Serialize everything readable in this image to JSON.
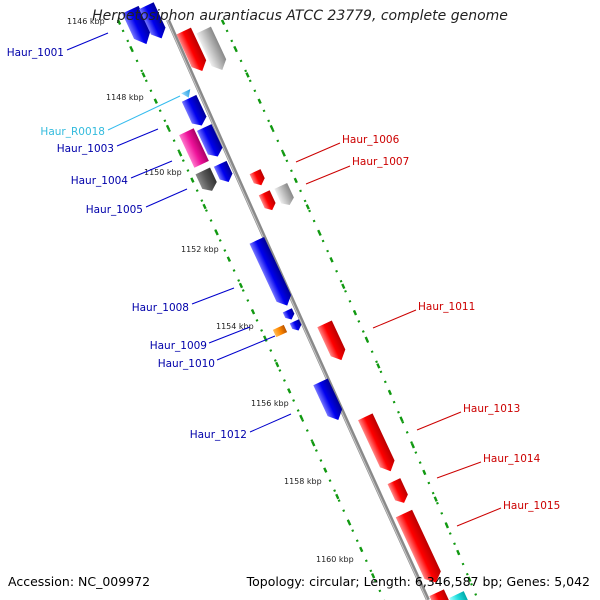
{
  "header": {
    "title": "Herpetosiphon aurantiacus ATCC 23779, complete genome"
  },
  "footer": {
    "accession": "Accession: NC_009972",
    "topology": "Topology: circular; Length: 6,346,587 bp; Genes: 5,042"
  },
  "colors": {
    "forward_gene": "#ee0000",
    "reverse_gene": "#0000dd",
    "pseudo_gene": "#bbbbbb",
    "pseudo_gene_dark": "#555555",
    "rrna": "#ee1199",
    "trna": "#ff8800",
    "ncrna": "#33bbee",
    "misc": "#22dddd",
    "backbone": "#888888",
    "tick_marks": "#119911",
    "forward_label": "#cc0000",
    "reverse_label": "#0000aa",
    "ncrna_label": "#33bbdd"
  },
  "position_markers": [
    "1146 kbp",
    "1148 kbp",
    "1150 kbp",
    "1152 kbp",
    "1154 kbp",
    "1156 kbp",
    "1158 kbp",
    "1160 kbp"
  ],
  "gene_labels": {
    "reverse": [
      "Haur_1001",
      "Haur_1003",
      "Haur_1004",
      "Haur_1005",
      "Haur_1008",
      "Haur_1009",
      "Haur_1010",
      "Haur_1012"
    ],
    "ncrna": [
      "Haur_R0018"
    ],
    "forward": [
      "Haur_1006",
      "Haur_1007",
      "Haur_1011",
      "Haur_1013",
      "Haur_1014",
      "Haur_1015"
    ]
  }
}
